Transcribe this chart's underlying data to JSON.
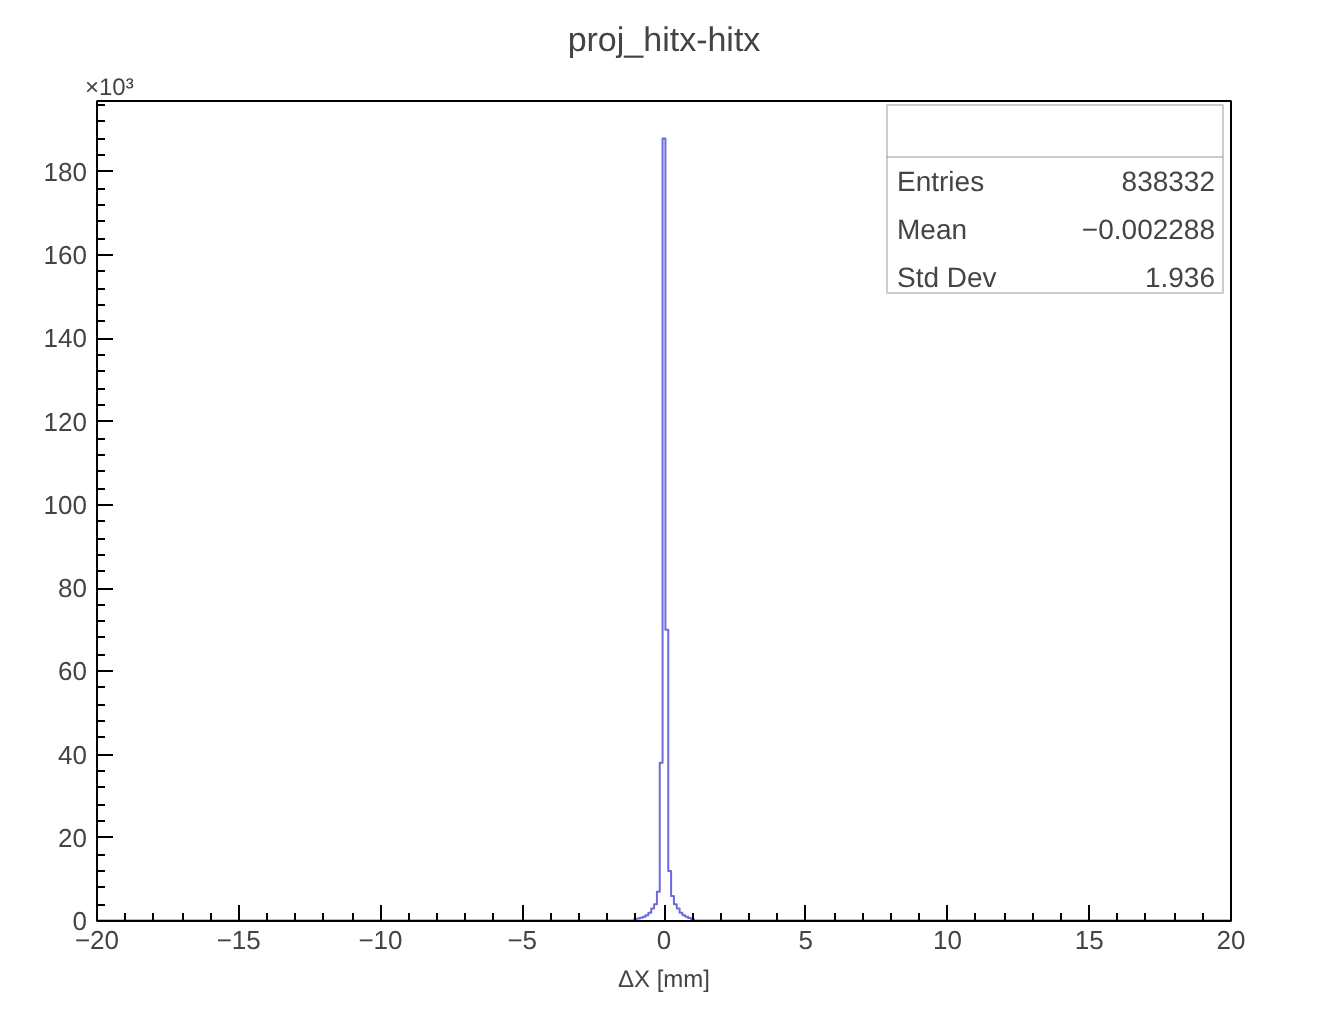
{
  "chart_data": {
    "type": "histogram",
    "title": "proj_hitx-hitx",
    "xlabel": "ΔX [mm]",
    "bins": [
      -20,
      -1.05,
      -0.95,
      -0.85,
      -0.75,
      -0.65,
      -0.55,
      -0.45,
      -0.35,
      -0.25,
      -0.15,
      -0.05,
      0.05,
      0.15,
      0.25,
      0.35,
      0.45,
      0.55,
      0.65,
      0.75,
      0.85,
      0.95,
      1.05,
      20
    ],
    "values": [
      0.1,
      0.5,
      0.6,
      0.8,
      1,
      1.4,
      2,
      3,
      4,
      7,
      38,
      188,
      70,
      12,
      6,
      4,
      3,
      2,
      1.4,
      1,
      0.7,
      0.5,
      0.1
    ],
    "color": "#6b6be0",
    "xlim": [
      -20,
      20
    ],
    "xticks": [
      -20,
      -15,
      -10,
      -5,
      0,
      5,
      10,
      15,
      20
    ],
    "ylim": [
      0,
      197
    ],
    "yticks": [
      0,
      20,
      40,
      60,
      80,
      100,
      120,
      140,
      160,
      180
    ],
    "grid": false,
    "annotations": [
      "×10³",
      "Entries",
      "838332",
      "Mean",
      "−0.002288",
      "Std Dev",
      "1.936"
    ]
  }
}
